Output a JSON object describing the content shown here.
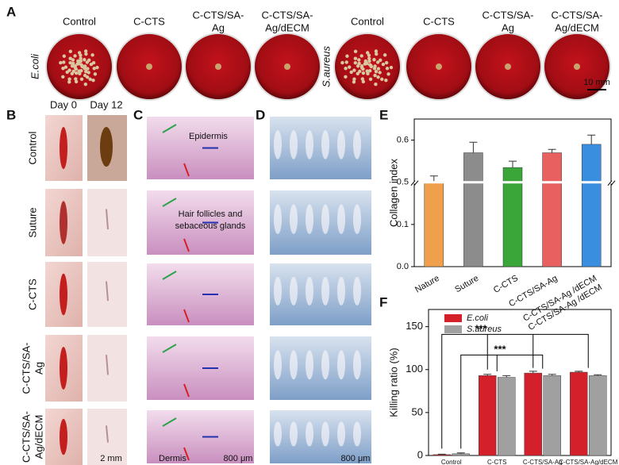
{
  "panel_labels": [
    "A",
    "B",
    "C",
    "D",
    "E",
    "F"
  ],
  "panel_a": {
    "dish_labels": [
      [
        "Control"
      ],
      [
        "C-CTS"
      ],
      [
        "C-CTS/SA-",
        "Ag"
      ],
      [
        "C-CTS/SA-",
        "Ag/dECM"
      ],
      [
        "Control"
      ],
      [
        "C-CTS"
      ],
      [
        "C-CTS/SA-",
        "Ag"
      ],
      [
        "C-CTS/SA-",
        "Ag/dECM"
      ]
    ],
    "row_labels": [
      "E.coli",
      "S.aureus"
    ],
    "scale_bar": "10 mm"
  },
  "panel_b": {
    "column_labels": [
      "Day 0",
      "Day 12"
    ],
    "row_labels": [
      [
        "Control"
      ],
      [
        "Suture"
      ],
      [
        "C-CTS"
      ],
      [
        "C-CTS/SA-",
        "Ag"
      ],
      [
        "C-CTS/SA-",
        "Ag/dECM"
      ]
    ],
    "scale_bar": "2 mm"
  },
  "panel_c": {
    "annotations": [
      "Epidermis",
      "Hair follicles and",
      "sebaceous glands",
      "Dermis"
    ],
    "scale_bar": "800 μm"
  },
  "panel_d": {
    "scale_bar": "800 μm"
  },
  "chart_data": [
    {
      "type": "bar",
      "ylabel": "Collagen index",
      "categories": [
        "Nature",
        "Suture",
        "C-CTS",
        "C-CTS/SA-Ag",
        "C-CTS/SA-Ag\n/dECM"
      ],
      "values": [
        0.5,
        0.57,
        0.535,
        0.57,
        0.59
      ],
      "errors": [
        0.015,
        0.025,
        0.015,
        0.008,
        0.022
      ],
      "colors": [
        "#f0a04b",
        "#8c8c8c",
        "#3aa63a",
        "#e8605f",
        "#3a8ee0"
      ],
      "ylim": [
        0,
        0.65
      ],
      "ybreak": [
        0.2,
        0.5
      ],
      "yticks": [
        {
          "value": 0,
          "label": "0.0"
        },
        0.1,
        0.5,
        0.6
      ]
    },
    {
      "type": "grouped-bar",
      "ylabel": "Killing ratio (%)",
      "categories": [
        "Control",
        "C-CTS",
        "C-CTS/SA-Ag",
        "C-CTS/SA-Ag/dECM"
      ],
      "series": [
        {
          "name": "E.coli",
          "color": "#d4202a",
          "values": [
            1,
            93,
            96,
            97
          ],
          "errors": [
            0.5,
            1.5,
            2,
            1
          ]
        },
        {
          "name": "S.aureus",
          "color": "#a0a0a0",
          "values": [
            2,
            91,
            93,
            93
          ],
          "errors": [
            1,
            2,
            1.5,
            1
          ]
        }
      ],
      "ylim": [
        0,
        170
      ],
      "yticks": [
        0,
        50,
        100,
        150
      ],
      "annotations": [
        "***",
        "***"
      ]
    }
  ]
}
